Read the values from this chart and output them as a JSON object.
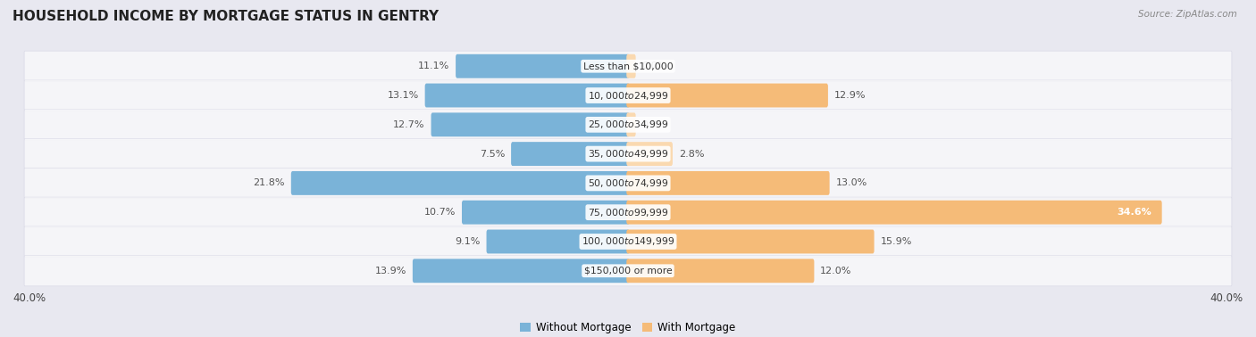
{
  "title": "HOUSEHOLD INCOME BY MORTGAGE STATUS IN GENTRY",
  "source": "Source: ZipAtlas.com",
  "categories": [
    "Less than $10,000",
    "$10,000 to $24,999",
    "$25,000 to $34,999",
    "$35,000 to $49,999",
    "$50,000 to $74,999",
    "$75,000 to $99,999",
    "$100,000 to $149,999",
    "$150,000 or more"
  ],
  "without_mortgage": [
    11.1,
    13.1,
    12.7,
    7.5,
    21.8,
    10.7,
    9.1,
    13.9
  ],
  "with_mortgage": [
    0.0,
    12.9,
    0.0,
    2.8,
    13.0,
    34.6,
    15.9,
    12.0
  ],
  "without_color": "#7ab3d8",
  "without_color_dark": "#5a90bb",
  "with_color": "#f5bb78",
  "with_color_light": "#fad9b0",
  "xlim": 40.0,
  "bg_color": "#e8e8f0",
  "row_bg_color": "#ededf3",
  "bar_height": 0.62,
  "title_fontsize": 11,
  "label_fontsize": 8.0,
  "cat_fontsize": 7.8,
  "axis_label_fontsize": 8.5
}
